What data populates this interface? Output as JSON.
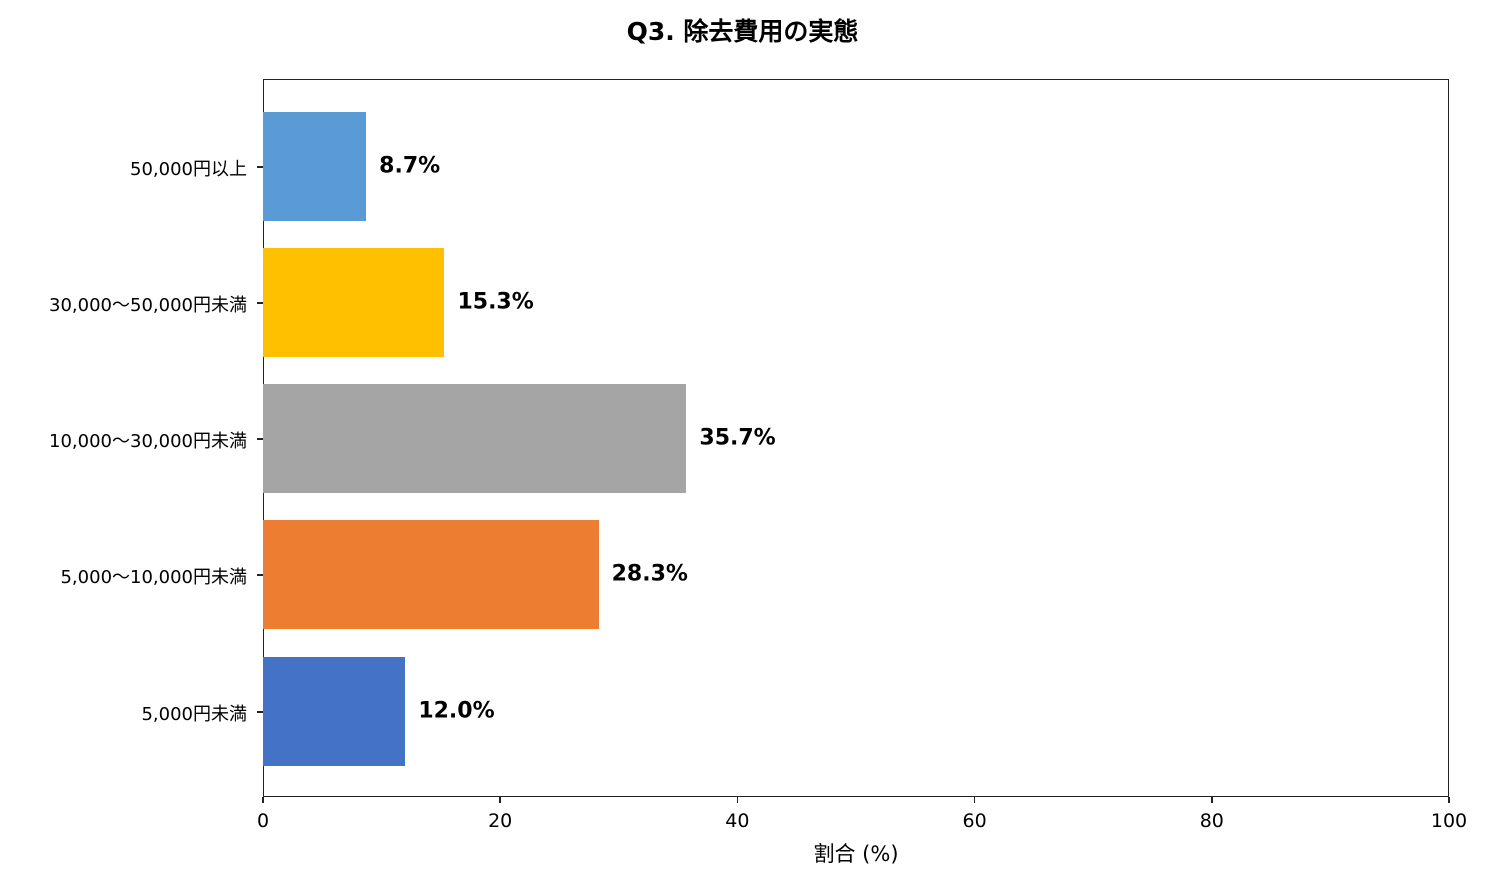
{
  "chart_data": {
    "type": "bar",
    "orientation": "horizontal",
    "title": "Q3. 除去費用の実態",
    "xlabel": "割合 (%)",
    "ylabel": "",
    "xlim": [
      0,
      100
    ],
    "xticks": [
      "0",
      "20",
      "40",
      "60",
      "80",
      "100"
    ],
    "grid": false,
    "legend": null,
    "categories": [
      "50,000円以上",
      "30,000〜50,000円未満",
      "10,000〜30,000円未満",
      "5,000〜10,000円未満",
      "5,000円未満"
    ],
    "values": [
      8.7,
      15.3,
      35.7,
      28.3,
      12.0
    ],
    "value_labels": [
      "8.7%",
      "15.3%",
      "35.7%",
      "28.3%",
      "12.0%"
    ],
    "colors": [
      "#5B9BD5",
      "#FFC000",
      "#A5A5A5",
      "#ED7D31",
      "#4472C4"
    ]
  }
}
